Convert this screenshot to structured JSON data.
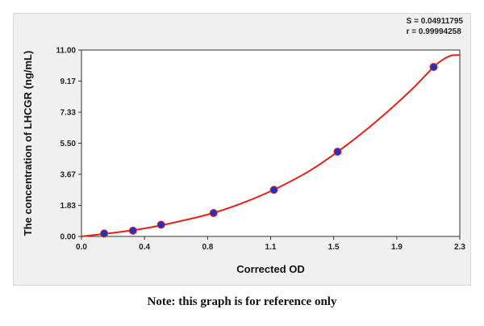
{
  "stats": {
    "s_line": "S = 0.04911795",
    "r_line": "r = 0.99994258"
  },
  "note": "Note: this graph is for reference only",
  "chart_data": {
    "type": "scatter",
    "xlabel": "Corrected OD",
    "ylabel": "The concentration of LHCGR (ng/mL)",
    "xlim": [
      0.0,
      2.3
    ],
    "ylim": [
      0.0,
      11.0
    ],
    "x_ticks": [
      "0.0",
      "0.4",
      "0.8",
      "1.1",
      "1.5",
      "1.9",
      "2.3"
    ],
    "x_tick_values": [
      0.0,
      0.383,
      0.767,
      1.15,
      1.533,
      1.917,
      2.3
    ],
    "y_ticks": [
      "0.00",
      "1.83",
      "3.67",
      "5.50",
      "7.33",
      "9.17",
      "11.00"
    ],
    "y_tick_values": [
      0.0,
      1.83,
      3.67,
      5.5,
      7.33,
      9.17,
      11.0
    ],
    "grid": false,
    "colors": {
      "curve": "#e8201a",
      "points": "#2233bb"
    },
    "points": [
      {
        "x": 0.138,
        "y": 0.17
      },
      {
        "x": 0.313,
        "y": 0.34
      },
      {
        "x": 0.484,
        "y": 0.69
      },
      {
        "x": 0.803,
        "y": 1.38
      },
      {
        "x": 1.17,
        "y": 2.75
      },
      {
        "x": 1.557,
        "y": 5.0
      },
      {
        "x": 2.141,
        "y": 10.0
      }
    ],
    "curve": [
      {
        "x": 0.0,
        "y": 0.0
      },
      {
        "x": 0.2,
        "y": 0.22
      },
      {
        "x": 0.4,
        "y": 0.5
      },
      {
        "x": 0.6,
        "y": 0.9
      },
      {
        "x": 0.8,
        "y": 1.38
      },
      {
        "x": 1.0,
        "y": 2.05
      },
      {
        "x": 1.2,
        "y": 2.9
      },
      {
        "x": 1.4,
        "y": 3.95
      },
      {
        "x": 1.6,
        "y": 5.3
      },
      {
        "x": 1.8,
        "y": 6.85
      },
      {
        "x": 2.0,
        "y": 8.6
      },
      {
        "x": 2.141,
        "y": 10.0
      },
      {
        "x": 2.2,
        "y": 10.45
      },
      {
        "x": 2.25,
        "y": 10.68
      },
      {
        "x": 2.3,
        "y": 10.7
      }
    ]
  }
}
